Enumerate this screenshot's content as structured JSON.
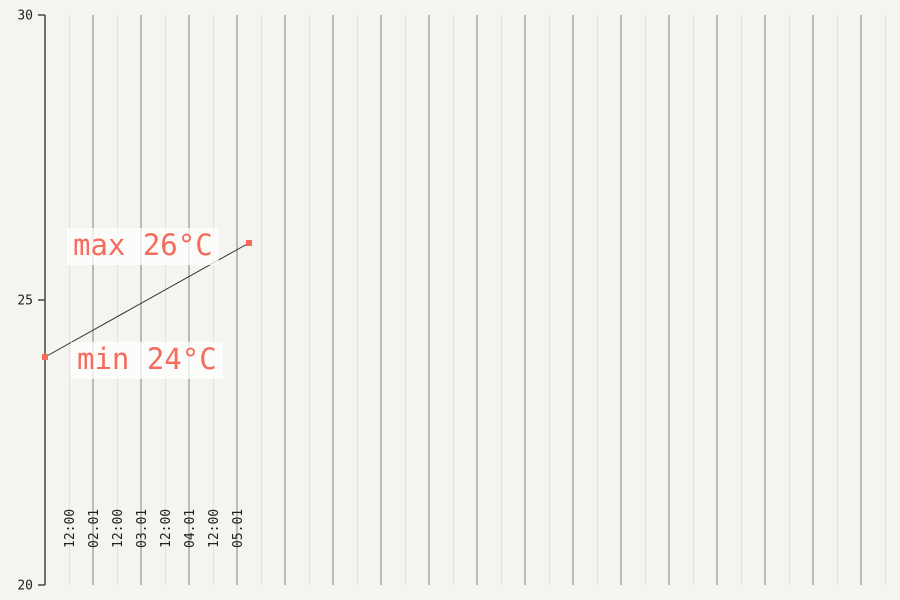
{
  "chart_data": {
    "type": "line",
    "title": "",
    "xlabel": "",
    "ylabel": "",
    "ylim": [
      20,
      30
    ],
    "y_ticks": [
      "20",
      "25",
      "30"
    ],
    "x_ticks": [
      {
        "label": "12:00",
        "at": "01.01 12:00"
      },
      {
        "label": "02.01",
        "at": "02.01 00:00"
      },
      {
        "label": "12:00",
        "at": "02.01 12:00"
      },
      {
        "label": "03.01",
        "at": "03.01 00:00"
      },
      {
        "label": "12:00",
        "at": "03.01 12:00"
      },
      {
        "label": "04.01",
        "at": "04.01 00:00"
      },
      {
        "label": "12:00",
        "at": "04.01 12:00"
      },
      {
        "label": "05.01",
        "at": "05.01 00:00"
      }
    ],
    "series": [
      {
        "points": [
          {
            "x": "01.01 00:00",
            "y": 24
          },
          {
            "x": "05.01 06:00",
            "y": 26
          }
        ]
      }
    ],
    "annotations": [
      {
        "text": "min 24°C",
        "x": "01.01 00:00",
        "y": 24
      },
      {
        "text": "max 26°C",
        "x": "05.01 06:00",
        "y": 26
      }
    ],
    "grid": true,
    "colors": {
      "background": "#f4f5f0",
      "line": "#333333",
      "accent": "#f56b5c",
      "grid_major": "#b9bcb5",
      "grid_minor": "#dfe2db",
      "axis": "#444444"
    }
  }
}
